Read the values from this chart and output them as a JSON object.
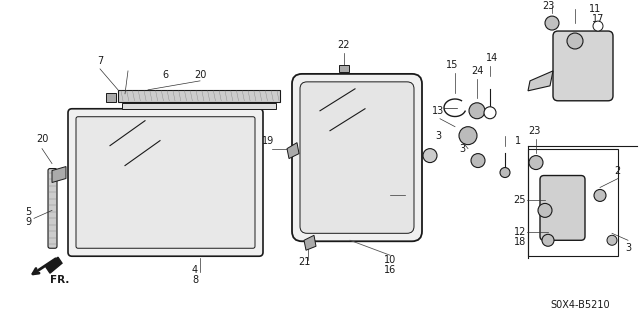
{
  "bg_color": "#ffffff",
  "line_color": "#1a1a1a",
  "fig_width": 6.4,
  "fig_height": 3.19,
  "diagram_code": "S0X4-B5210"
}
